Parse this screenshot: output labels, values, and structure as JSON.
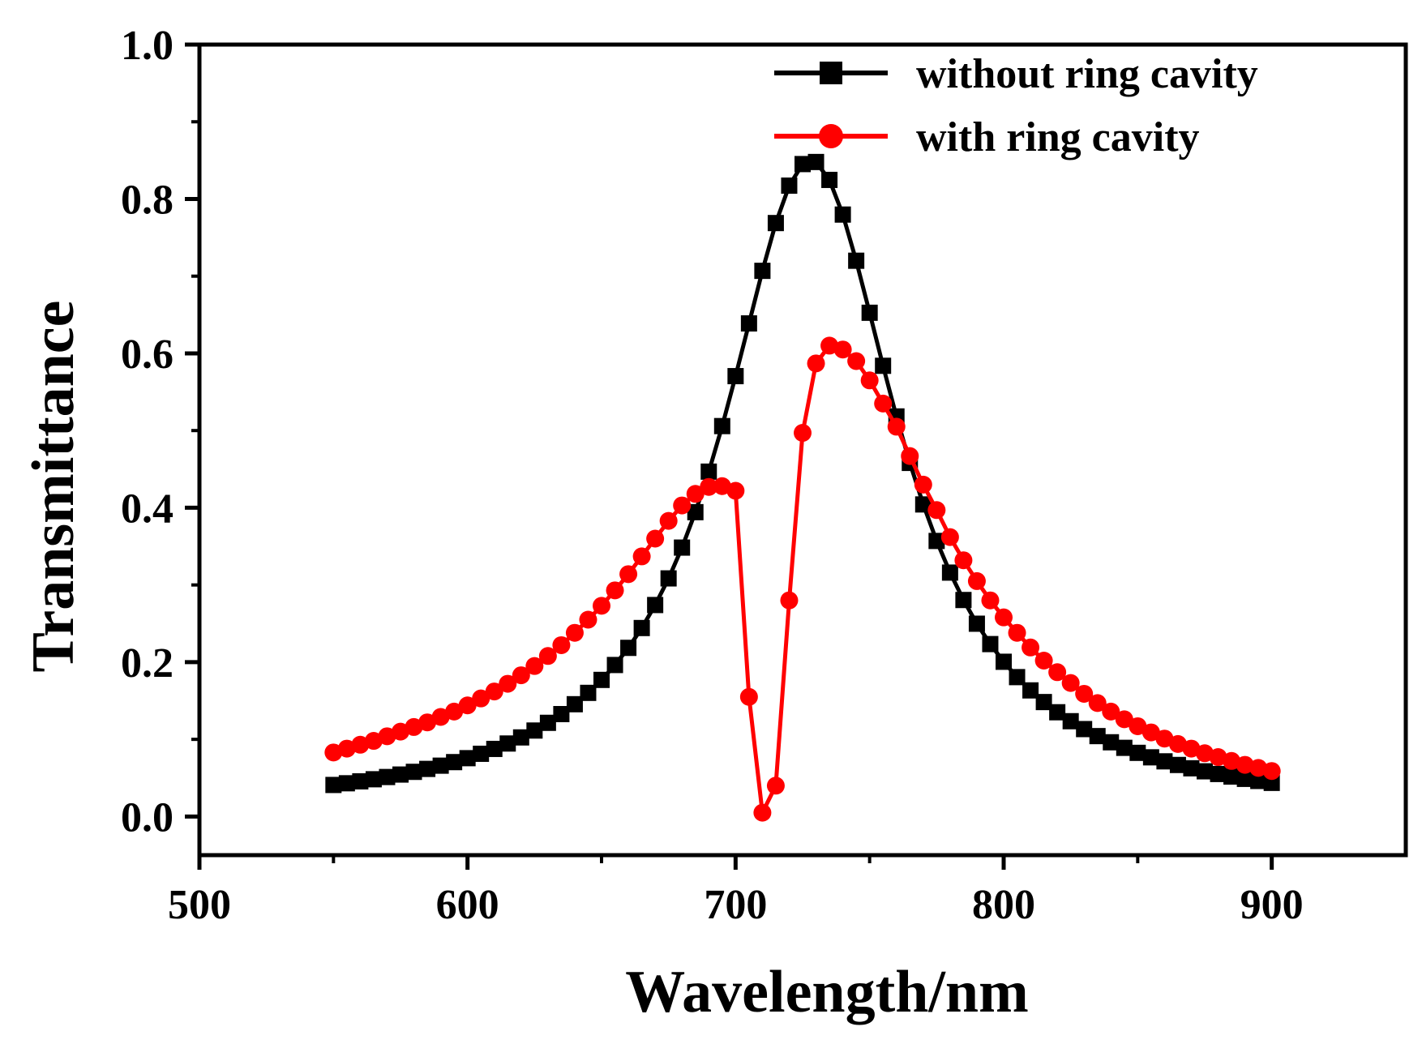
{
  "chart_data": {
    "type": "line",
    "title": "",
    "xlabel": "Wavelength/nm",
    "ylabel": "Transmittance",
    "xlim": [
      500,
      950
    ],
    "ylim": [
      -0.05,
      1.0
    ],
    "xticks": [
      500,
      600,
      700,
      800,
      900
    ],
    "xtick_labels": [
      "500",
      "600",
      "700",
      "800",
      "900"
    ],
    "yticks": [
      0.0,
      0.2,
      0.4,
      0.6,
      0.8,
      1.0
    ],
    "ytick_labels": [
      "0.0",
      "0.2",
      "0.4",
      "0.6",
      "0.8",
      "1.0"
    ],
    "grid": false,
    "legend_position": "top-right",
    "series": [
      {
        "name": "without ring cavity",
        "color": "#000000",
        "marker": "square",
        "model": {
          "peak": 0.85,
          "center": 728,
          "half_width": 40,
          "x_start": 550,
          "x_end": 900,
          "step": 5
        }
      },
      {
        "name": "with ring cavity",
        "color": "#ff0000",
        "marker": "circle",
        "x": [
          550,
          555,
          560,
          565,
          570,
          575,
          580,
          585,
          590,
          595,
          600,
          605,
          610,
          615,
          620,
          625,
          630,
          635,
          640,
          645,
          650,
          655,
          660,
          665,
          670,
          675,
          680,
          685,
          690,
          695,
          700,
          705,
          710,
          715,
          720,
          725,
          730,
          735,
          740,
          745,
          750,
          755,
          760,
          765,
          770,
          775,
          780,
          785,
          790,
          795,
          800,
          805,
          810,
          815,
          820,
          825,
          830,
          835,
          840,
          845,
          850,
          855,
          860,
          865,
          870,
          875,
          880,
          885,
          890,
          895,
          900
        ],
        "y": [
          0.083,
          0.088,
          0.093,
          0.098,
          0.104,
          0.11,
          0.116,
          0.122,
          0.129,
          0.136,
          0.144,
          0.153,
          0.162,
          0.172,
          0.183,
          0.195,
          0.208,
          0.222,
          0.238,
          0.255,
          0.273,
          0.293,
          0.314,
          0.337,
          0.36,
          0.383,
          0.403,
          0.418,
          0.427,
          0.428,
          0.422,
          0.155,
          0.005,
          0.04,
          0.28,
          0.497,
          0.587,
          0.61,
          0.605,
          0.59,
          0.565,
          0.535,
          0.505,
          0.467,
          0.43,
          0.397,
          0.362,
          0.332,
          0.305,
          0.28,
          0.258,
          0.238,
          0.219,
          0.202,
          0.187,
          0.173,
          0.159,
          0.147,
          0.136,
          0.126,
          0.117,
          0.109,
          0.101,
          0.094,
          0.088,
          0.082,
          0.077,
          0.072,
          0.067,
          0.063,
          0.059
        ]
      }
    ]
  }
}
